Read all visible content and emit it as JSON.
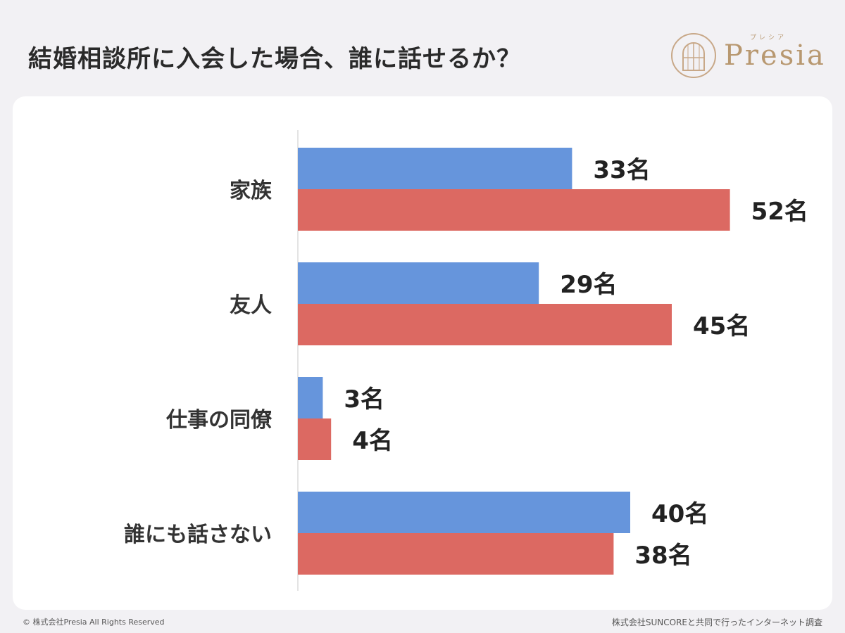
{
  "header": {
    "title": "結婚相談所に入会した場合、誰に話せるか？"
  },
  "logo": {
    "name": "Presia",
    "kana": "プレシア",
    "color": "#b89870"
  },
  "chart_data": {
    "type": "bar",
    "orientation": "horizontal",
    "categories": [
      "家族",
      "友人",
      "仕事の同僚",
      "誰にも話さない"
    ],
    "series": [
      {
        "values": [
          33,
          29,
          3,
          40
        ],
        "color": "#6695dc"
      },
      {
        "values": [
          52,
          45,
          4,
          38
        ],
        "color": "#dc6962"
      }
    ],
    "unit": "名",
    "title": "",
    "xlabel": "",
    "ylabel": "",
    "legend": "none",
    "grid": false
  },
  "footer": {
    "copyright": "© 株式会社Presia All Rights Reserved",
    "source": "株式会社SUNCOREと共同で行ったインターネット調査"
  }
}
